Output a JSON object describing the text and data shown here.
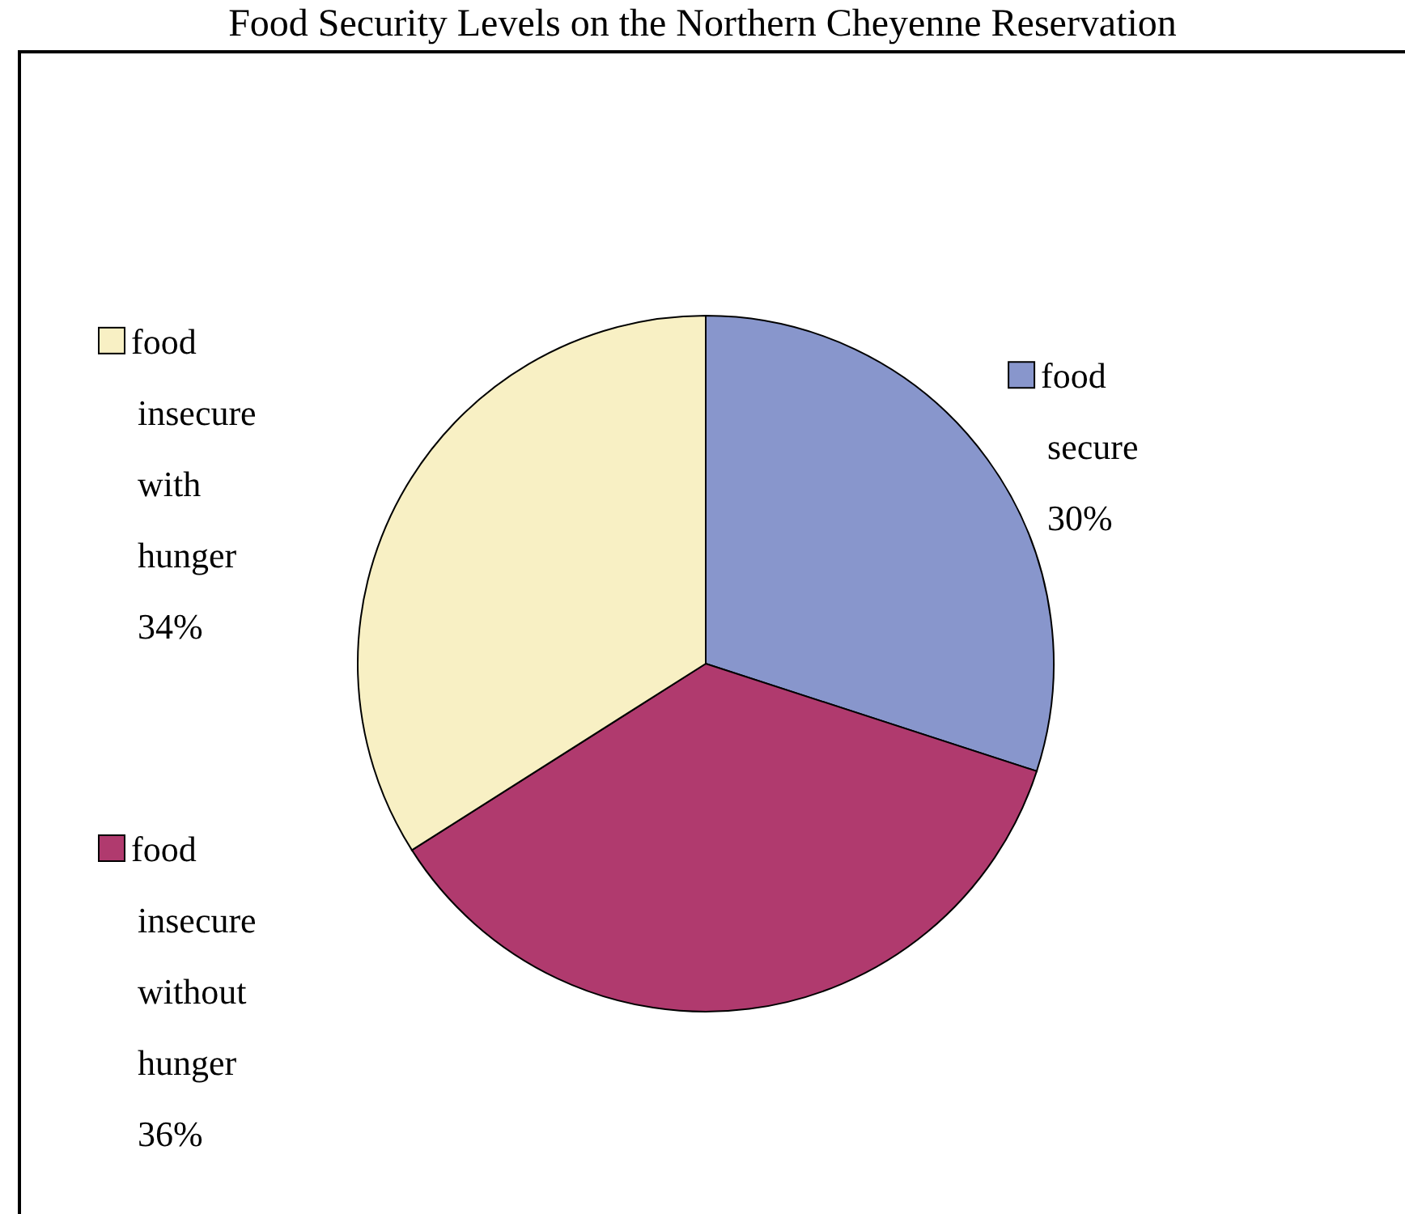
{
  "chart_data": {
    "type": "pie",
    "title": "Food Security Levels on the Northern Cheyenne Reservation",
    "categories": [
      "food secure",
      "food insecure without hunger",
      "food insecure with hunger"
    ],
    "values": [
      30,
      36,
      34
    ],
    "value_labels": [
      "30%",
      "36%",
      "34%"
    ],
    "colors": [
      "#8896cc",
      "#b03a6e",
      "#f8f0c4"
    ],
    "legend": "left"
  }
}
